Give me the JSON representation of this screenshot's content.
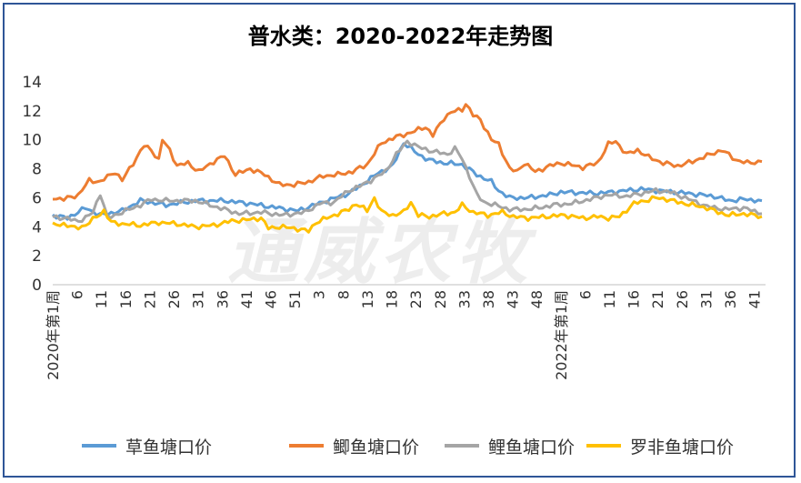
{
  "watermark": "通威农牧",
  "chart_data": {
    "type": "line",
    "title": "普水类：2020-2022年走势图",
    "ylim": [
      0,
      14
    ],
    "yticks": [
      0,
      2,
      4,
      6,
      8,
      10,
      12,
      14
    ],
    "grid": false,
    "legend_position": "bottom",
    "x_tick_labels": [
      "2020年第1周",
      "6",
      "11",
      "16",
      "21",
      "26",
      "31",
      "36",
      "41",
      "46",
      "51",
      "3",
      "8",
      "13",
      "18",
      "23",
      "28",
      "33",
      "38",
      "43",
      "48",
      "2022年第1周",
      "6",
      "11",
      "16",
      "21",
      "26",
      "31",
      "36",
      "41"
    ],
    "series": [
      {
        "name": "草鱼塘口价",
        "color": "#5b9bd5",
        "keypoints": [
          [
            1,
            4.8
          ],
          [
            5,
            4.6
          ],
          [
            10,
            5.3
          ],
          [
            14,
            4.8
          ],
          [
            20,
            5.1
          ],
          [
            25,
            5.8
          ],
          [
            32,
            5.5
          ],
          [
            40,
            5.8
          ],
          [
            48,
            5.8
          ],
          [
            55,
            5.6
          ],
          [
            60,
            5.4
          ],
          [
            68,
            5.1
          ],
          [
            76,
            5.8
          ],
          [
            82,
            6.3
          ],
          [
            85,
            6.8
          ],
          [
            90,
            7.7
          ],
          [
            94,
            8.2
          ],
          [
            97,
            9.8
          ],
          [
            101,
            9.0
          ],
          [
            104,
            8.6
          ],
          [
            108,
            8.4
          ],
          [
            113,
            8.3
          ],
          [
            117,
            7.6
          ],
          [
            121,
            7.1
          ],
          [
            123,
            6.5
          ],
          [
            126,
            6.0
          ],
          [
            131,
            6.0
          ],
          [
            134,
            6.1
          ],
          [
            137,
            6.2
          ],
          [
            140,
            6.4
          ],
          [
            150,
            6.3
          ],
          [
            162,
            6.6
          ],
          [
            175,
            6.3
          ],
          [
            182,
            6.1
          ],
          [
            186,
            5.8
          ],
          [
            190,
            5.9
          ],
          [
            195,
            5.8
          ]
        ]
      },
      {
        "name": "鲫鱼塘口价",
        "color": "#ed7d31",
        "keypoints": [
          [
            1,
            6.0
          ],
          [
            4,
            5.9
          ],
          [
            8,
            6.2
          ],
          [
            11,
            7.2
          ],
          [
            14,
            7.1
          ],
          [
            18,
            7.8
          ],
          [
            20,
            7.2
          ],
          [
            23,
            8.4
          ],
          [
            26,
            9.6
          ],
          [
            28,
            9.3
          ],
          [
            30,
            8.6
          ],
          [
            31,
            10.0
          ],
          [
            33,
            9.3
          ],
          [
            35,
            8.2
          ],
          [
            38,
            8.4
          ],
          [
            41,
            7.8
          ],
          [
            45,
            8.5
          ],
          [
            48,
            8.9
          ],
          [
            51,
            7.6
          ],
          [
            55,
            8.0
          ],
          [
            59,
            7.6
          ],
          [
            63,
            6.9
          ],
          [
            67,
            6.9
          ],
          [
            71,
            7.1
          ],
          [
            75,
            7.5
          ],
          [
            79,
            7.6
          ],
          [
            83,
            7.8
          ],
          [
            87,
            8.3
          ],
          [
            91,
            9.8
          ],
          [
            95,
            10.2
          ],
          [
            99,
            10.5
          ],
          [
            103,
            10.9
          ],
          [
            105,
            10.3
          ],
          [
            108,
            11.5
          ],
          [
            110,
            11.9
          ],
          [
            113,
            12.1
          ],
          [
            114,
            12.5
          ],
          [
            116,
            11.7
          ],
          [
            118,
            11.4
          ],
          [
            121,
            10.0
          ],
          [
            123,
            9.7
          ],
          [
            126,
            8.0
          ],
          [
            128,
            7.8
          ],
          [
            130,
            8.4
          ],
          [
            133,
            7.8
          ],
          [
            137,
            8.2
          ],
          [
            140,
            8.4
          ],
          [
            146,
            8.1
          ],
          [
            150,
            8.4
          ],
          [
            153,
            9.7
          ],
          [
            155,
            9.9
          ],
          [
            158,
            9.0
          ],
          [
            161,
            9.3
          ],
          [
            164,
            8.8
          ],
          [
            168,
            8.4
          ],
          [
            172,
            8.2
          ],
          [
            176,
            8.5
          ],
          [
            180,
            8.9
          ],
          [
            184,
            9.3
          ],
          [
            188,
            8.6
          ],
          [
            191,
            8.4
          ],
          [
            195,
            8.5
          ]
        ]
      },
      {
        "name": "鲤鱼塘口价",
        "color": "#a5a5a5",
        "keypoints": [
          [
            1,
            4.7
          ],
          [
            4,
            4.6
          ],
          [
            8,
            4.4
          ],
          [
            10,
            4.6
          ],
          [
            12,
            5.0
          ],
          [
            14,
            6.3
          ],
          [
            16,
            4.6
          ],
          [
            20,
            5.0
          ],
          [
            25,
            5.5
          ],
          [
            28,
            5.9
          ],
          [
            32,
            5.8
          ],
          [
            40,
            5.8
          ],
          [
            44,
            5.5
          ],
          [
            48,
            5.2
          ],
          [
            52,
            4.9
          ],
          [
            58,
            5.0
          ],
          [
            64,
            4.8
          ],
          [
            70,
            5.0
          ],
          [
            74,
            5.6
          ],
          [
            78,
            5.7
          ],
          [
            82,
            6.5
          ],
          [
            85,
            6.8
          ],
          [
            88,
            7.2
          ],
          [
            92,
            7.8
          ],
          [
            95,
            9.0
          ],
          [
            98,
            9.9
          ],
          [
            101,
            9.5
          ],
          [
            105,
            9.2
          ],
          [
            109,
            9.0
          ],
          [
            111,
            9.4
          ],
          [
            113,
            8.7
          ],
          [
            115,
            7.5
          ],
          [
            117,
            6.2
          ],
          [
            119,
            5.7
          ],
          [
            122,
            5.5
          ],
          [
            126,
            5.2
          ],
          [
            130,
            5.2
          ],
          [
            134,
            5.3
          ],
          [
            138,
            5.5
          ],
          [
            143,
            5.6
          ],
          [
            148,
            5.9
          ],
          [
            153,
            6.2
          ],
          [
            158,
            6.1
          ],
          [
            162,
            6.3
          ],
          [
            166,
            6.5
          ],
          [
            170,
            6.4
          ],
          [
            175,
            5.9
          ],
          [
            180,
            5.4
          ],
          [
            185,
            5.2
          ],
          [
            190,
            5.3
          ],
          [
            195,
            4.9
          ]
        ]
      },
      {
        "name": "罗非鱼塘口价",
        "color": "#ffc000",
        "keypoints": [
          [
            1,
            4.1
          ],
          [
            4,
            4.2
          ],
          [
            7,
            3.9
          ],
          [
            10,
            4.1
          ],
          [
            13,
            4.7
          ],
          [
            15,
            5.1
          ],
          [
            17,
            4.3
          ],
          [
            20,
            4.2
          ],
          [
            25,
            4.1
          ],
          [
            30,
            4.3
          ],
          [
            35,
            4.2
          ],
          [
            40,
            4.0
          ],
          [
            45,
            4.1
          ],
          [
            50,
            4.4
          ],
          [
            55,
            4.5
          ],
          [
            58,
            4.6
          ],
          [
            60,
            3.9
          ],
          [
            63,
            4.0
          ],
          [
            67,
            3.9
          ],
          [
            71,
            3.7
          ],
          [
            73,
            4.3
          ],
          [
            76,
            4.6
          ],
          [
            80,
            5.0
          ],
          [
            82,
            5.2
          ],
          [
            84,
            5.6
          ],
          [
            87,
            5.1
          ],
          [
            89,
            6.0
          ],
          [
            91,
            5.0
          ],
          [
            94,
            4.8
          ],
          [
            97,
            5.0
          ],
          [
            99,
            5.7
          ],
          [
            101,
            4.8
          ],
          [
            104,
            4.7
          ],
          [
            108,
            4.9
          ],
          [
            111,
            5.0
          ],
          [
            113,
            5.5
          ],
          [
            116,
            5.0
          ],
          [
            120,
            4.8
          ],
          [
            124,
            5.0
          ],
          [
            127,
            4.7
          ],
          [
            131,
            4.6
          ],
          [
            136,
            4.7
          ],
          [
            141,
            4.8
          ],
          [
            146,
            4.6
          ],
          [
            150,
            4.7
          ],
          [
            153,
            4.6
          ],
          [
            156,
            4.7
          ],
          [
            160,
            5.6
          ],
          [
            163,
            5.8
          ],
          [
            166,
            6.0
          ],
          [
            169,
            5.9
          ],
          [
            172,
            5.7
          ],
          [
            176,
            5.5
          ],
          [
            180,
            5.3
          ],
          [
            183,
            5.0
          ],
          [
            186,
            4.8
          ],
          [
            190,
            4.9
          ],
          [
            195,
            4.7
          ]
        ]
      }
    ]
  }
}
